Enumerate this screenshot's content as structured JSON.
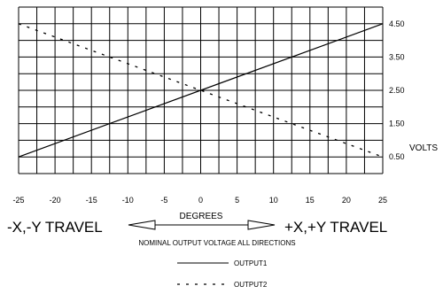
{
  "chart_data": {
    "type": "line",
    "x": [
      -25,
      25
    ],
    "series": [
      {
        "name": "OUTPUT1",
        "style": "solid",
        "values": [
          0.5,
          4.5
        ]
      },
      {
        "name": "OUTPUT2",
        "style": "dashed",
        "values": [
          4.5,
          0.5
        ]
      }
    ],
    "xlim": [
      -25,
      25
    ],
    "ylim": [
      0,
      5
    ],
    "x_ticks": [
      -25,
      -20,
      -15,
      -10,
      -5,
      0,
      5,
      10,
      15,
      20,
      25
    ],
    "y_ticks": [
      {
        "value": 4.5,
        "label": "4.50"
      },
      {
        "value": 3.5,
        "label": "3.50"
      },
      {
        "value": 2.5,
        "label": "2.50"
      },
      {
        "value": 1.5,
        "label": "1.50"
      },
      {
        "value": 0.5,
        "label": "0.50"
      }
    ],
    "y_unit": "VOLTS",
    "xlabel": "DEGREES",
    "left_direction": "-X,-Y TRAVEL",
    "right_direction": "+X,+Y TRAVEL",
    "caption": "NOMINAL OUTPUT VOLTAGE ALL DIRECTIONS",
    "grid": true,
    "grid_x_step": 2.5,
    "grid_y_step": 0.5,
    "legend_position": "bottom"
  }
}
